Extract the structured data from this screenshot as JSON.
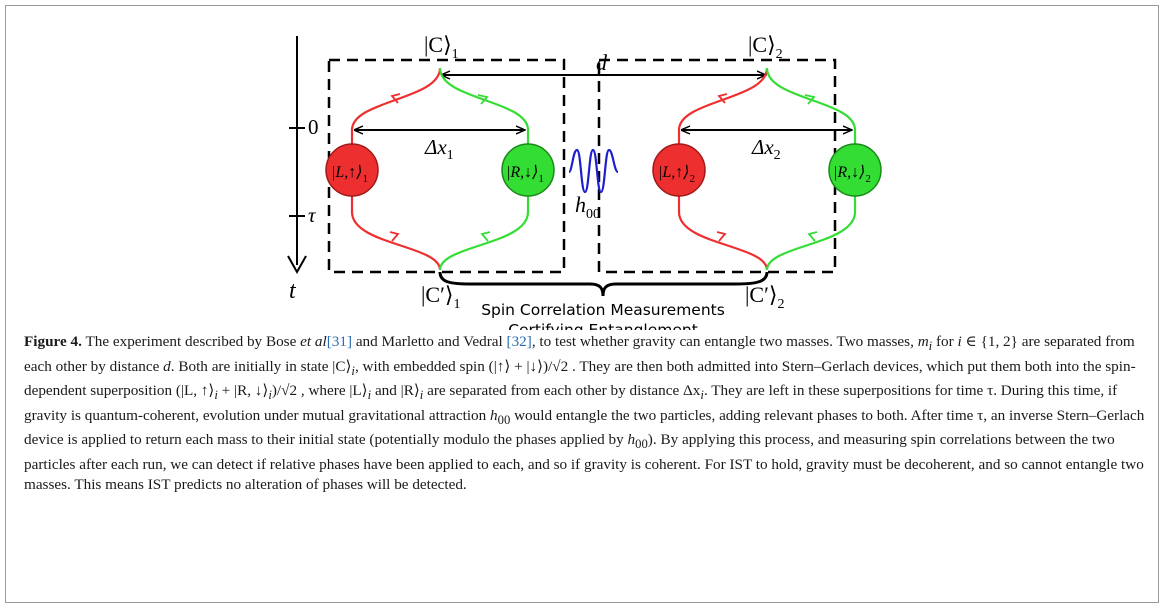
{
  "figure": {
    "ket_c1": "|C⟩",
    "sub_1": "1",
    "ket_c2": "|C⟩",
    "sub_2": "2",
    "ket_cp1": "|C′⟩",
    "ket_cp2": "|C′⟩",
    "distance_label": "d",
    "delta_x1": "Δx",
    "delta_x2": "Δx",
    "ball_L1": "|L,↑⟩",
    "ball_R1": "|R,↓⟩",
    "ball_L2": "|L,↑⟩",
    "ball_R2": "|R,↓⟩",
    "h00": "h",
    "h00_sub": "00",
    "time_axis_label": "t",
    "tick_zero": "0",
    "tick_tau": "τ",
    "measure_line1": "Spin Correlation Measurements",
    "measure_line2": "Certifying Entanglement",
    "colors": {
      "red": "#ee2f2f",
      "green": "#33dd33",
      "blue": "#1f1fcc"
    }
  },
  "caption": {
    "label": "Figure 4.",
    "s1": " The experiment described by Bose ",
    "etal": "et al",
    "r31": "[31]",
    "s2": " and Marletto and Vedral ",
    "r32": "[32]",
    "s3": ", to test whether gravity can entangle two masses. Two masses, ",
    "s4": "m",
    "s5": "i",
    "s6": " for ",
    "s7": "i",
    "s8": " ∈ {1, 2} are separated from each other by distance ",
    "s9": "d",
    "s10": ". Both are initially in state |C⟩",
    "s11": "i",
    "s12": ", with embedded spin (|↑⟩ + |↓⟩)/√2 . They are then both admitted into Stern–Gerlach devices, which put them both into the spin-dependent superposition (|L, ↑⟩",
    "s13": "i",
    "s14": " + |R, ↓⟩",
    "s15": "i",
    "s16": ")/√2 , where |L⟩",
    "s17": "i",
    "s18": " and |R⟩",
    "s19": "i",
    "s20": " are separated from each other by distance Δx",
    "s21": "i",
    "s22": ". They are left in these superpositions for time τ. During this time, if gravity is quantum-coherent, evolution under mutual gravitational attraction ",
    "s23": "h",
    "s24": "00",
    "s25": " would entangle the two particles, adding relevant phases to both. After time τ, an inverse Stern–Gerlach device is applied to return each mass to their initial state (potentially modulo the phases applied by ",
    "s26": "h",
    "s27": "00",
    "s28": "). By applying this process, and measuring spin correlations between the two particles after each run, we can detect if relative phases have been applied to each, and so if gravity is coherent. For IST to hold, gravity must be decoherent, and so cannot entangle two masses. This means IST predicts no alteration of phases will be detected."
  }
}
